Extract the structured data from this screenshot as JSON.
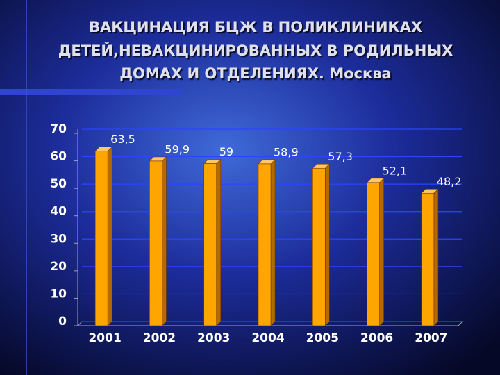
{
  "chart_data": {
    "type": "bar",
    "title": [
      "ВАКЦИНАЦИЯ БЦЖ В ПОЛИКЛИНИКАХ",
      "ДЕТЕЙ,НЕВАКЦИНИРОВАННЫХ В РОДИЛЬНЫХ",
      "ДОМАХ И ОТДЕЛЕНИЯХ. Москва"
    ],
    "categories": [
      "2001",
      "2002",
      "2003",
      "2004",
      "2005",
      "2006",
      "2007"
    ],
    "values": [
      63.5,
      59.9,
      59,
      58.9,
      57.3,
      52.1,
      48.2
    ],
    "value_labels": [
      "63,5",
      "59,9",
      "59",
      "58,9",
      "57,3",
      "52,1",
      "48,2"
    ],
    "color": "#ffa500",
    "ylim": [
      0,
      70
    ],
    "yticks": [
      0,
      10,
      20,
      30,
      40,
      50,
      60,
      70
    ],
    "grid": true
  }
}
